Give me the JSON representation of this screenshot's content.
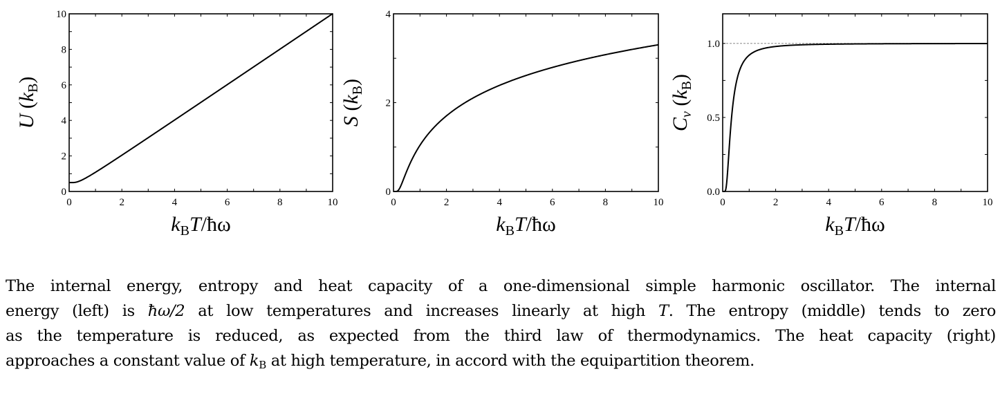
{
  "figure": {
    "panels": [
      {
        "id": "internal-energy",
        "ylabel_main": "U",
        "ylabel_unit": "k",
        "ylabel_sub": "B",
        "xlabel_main": "k",
        "xlabel_sub": "B",
        "xlabel_rest": "T/ħω",
        "xticks": [
          "0",
          "2",
          "4",
          "6",
          "8",
          "10"
        ],
        "yticks": [
          "0",
          "2",
          "4",
          "6",
          "8",
          "10"
        ]
      },
      {
        "id": "entropy",
        "ylabel_main": "S",
        "ylabel_unit": "k",
        "ylabel_sub": "B",
        "xlabel_main": "k",
        "xlabel_sub": "B",
        "xlabel_rest": "T/ħω",
        "xticks": [
          "0",
          "2",
          "4",
          "6",
          "8",
          "10"
        ],
        "yticks": [
          "0",
          "2",
          "4"
        ]
      },
      {
        "id": "heat-capacity",
        "ylabel_main": "C",
        "ylabel_sub_main": "v",
        "ylabel_unit": "k",
        "ylabel_sub": "B",
        "xlabel_main": "k",
        "xlabel_sub": "B",
        "xlabel_rest": "T/ħω",
        "xticks": [
          "0",
          "2",
          "4",
          "6",
          "8",
          "10"
        ],
        "yticks": [
          "0.0",
          "0.5",
          "1.0"
        ]
      }
    ]
  },
  "caption": {
    "lines": [
      "The internal energy, entropy and heat capacity of a one-dimensional simple harmonic oscillator. The internal",
      "energy (left) is ħω/2 at low temperatures and increases linearly at high T. The entropy (middle) tends to zero",
      "as the temperature is reduced, as expected from the third law of thermodynamics. The heat capacity (right)",
      "approaches a constant value of k_B at high temperature, in accord with the equipartition theorem."
    ],
    "line2_pre": "energy (left) is ",
    "line2_math": "ħω/2",
    "line2_mid": " at low temperatures and increases linearly at high ",
    "line2_T": "T",
    "line2_post": ". The entropy (middle) tends to zero",
    "line1": "The internal energy, entropy and heat capacity of a one-dimensional simple harmonic oscillator. The internal",
    "line3": "as the temperature is reduced, as expected from the third law of thermodynamics. The heat capacity (right)",
    "line4_pre": "approaches a constant value of ",
    "line4_k": "k",
    "line4_sub": "B",
    "line4_post": " at high temperature, in accord with the equipartition theorem."
  },
  "chart_data": [
    {
      "type": "line",
      "title": "",
      "xlabel": "k_B T/ħω",
      "ylabel": "U (k_B)",
      "xlim": [
        0,
        10
      ],
      "ylim": [
        0,
        10
      ],
      "grid": false,
      "x": [
        0,
        0.25,
        0.5,
        1,
        1.5,
        2,
        3,
        4,
        5,
        6,
        7,
        8,
        9,
        10
      ],
      "series": [
        {
          "name": "U",
          "values": [
            0.5,
            0.509,
            0.582,
            1.041,
            1.527,
            2.021,
            3.014,
            4.01,
            5.008,
            6.007,
            7.006,
            8.005,
            9.005,
            10.004
          ]
        }
      ]
    },
    {
      "type": "line",
      "title": "",
      "xlabel": "k_B T/ħω",
      "ylabel": "S (k_B)",
      "xlim": [
        0,
        10
      ],
      "ylim": [
        0,
        4
      ],
      "grid": false,
      "x": [
        0.1,
        0.2,
        0.3,
        0.5,
        0.75,
        1,
        1.5,
        2,
        3,
        4,
        5,
        6,
        7,
        8,
        9,
        10
      ],
      "series": [
        {
          "name": "S",
          "values": [
            0.0005,
            0.041,
            0.158,
            0.46,
            0.786,
            1.041,
            1.422,
            1.703,
            2.103,
            2.389,
            2.612,
            2.794,
            2.948,
            3.081,
            3.199,
            3.303
          ]
        }
      ]
    },
    {
      "type": "line",
      "title": "",
      "xlabel": "k_B T/ħω",
      "ylabel": "C_v (k_B)",
      "xlim": [
        0,
        10
      ],
      "ylim": [
        0,
        1.2
      ],
      "grid": false,
      "reference_line": {
        "y": 1.0,
        "style": "dashed"
      },
      "x": [
        0.1,
        0.15,
        0.2,
        0.3,
        0.4,
        0.5,
        0.75,
        1,
        1.5,
        2,
        3,
        4,
        6,
        8,
        10
      ],
      "series": [
        {
          "name": "Cv",
          "values": [
            0.0045,
            0.0566,
            0.171,
            0.438,
            0.629,
            0.724,
            0.858,
            0.921,
            0.964,
            0.979,
            0.991,
            0.995,
            0.998,
            0.999,
            0.999
          ]
        }
      ]
    }
  ]
}
